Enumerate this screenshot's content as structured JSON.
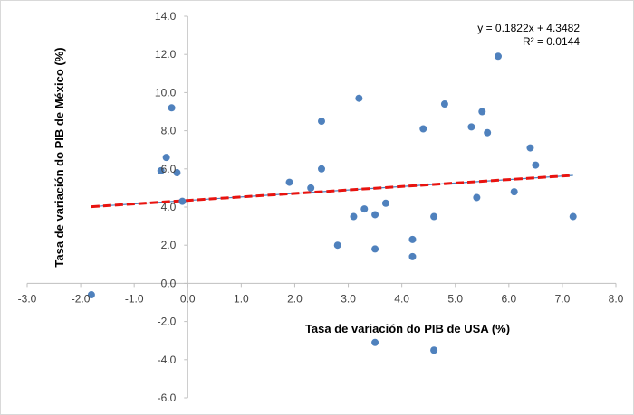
{
  "chart_data": {
    "type": "scatter",
    "xlabel": "Tasa de variación do PIB de USA (%)",
    "ylabel": "Tasa de variación do PIB de México (%)",
    "xlim": [
      -3.0,
      8.0
    ],
    "ylim": [
      -6.0,
      14.0
    ],
    "x_ticks": [
      -3.0,
      -2.0,
      -1.0,
      0.0,
      1.0,
      2.0,
      3.0,
      4.0,
      5.0,
      6.0,
      7.0,
      8.0
    ],
    "y_ticks": [
      -6.0,
      -4.0,
      -2.0,
      0.0,
      2.0,
      4.0,
      6.0,
      8.0,
      10.0,
      12.0,
      14.0
    ],
    "x_tick_labels": [
      "-3.0",
      "-2.0",
      "-1.0",
      "0.0",
      "1.0",
      "2.0",
      "3.0",
      "4.0",
      "5.0",
      "6.0",
      "7.0",
      "8.0"
    ],
    "y_tick_labels": [
      "-6.0",
      "-4.0",
      "-2.0",
      "0.0",
      "2.0",
      "4.0",
      "6.0",
      "8.0",
      "10.0",
      "12.0",
      "14.0"
    ],
    "points": [
      {
        "x": -1.8,
        "y": -0.6
      },
      {
        "x": -0.5,
        "y": 5.9
      },
      {
        "x": -0.4,
        "y": 6.6
      },
      {
        "x": -0.3,
        "y": 9.2
      },
      {
        "x": -0.2,
        "y": 5.8
      },
      {
        "x": -0.1,
        "y": 4.3
      },
      {
        "x": 1.9,
        "y": 5.3
      },
      {
        "x": 2.3,
        "y": 5.0
      },
      {
        "x": 2.5,
        "y": 6.0
      },
      {
        "x": 2.5,
        "y": 8.5
      },
      {
        "x": 2.8,
        "y": 2.0
      },
      {
        "x": 3.1,
        "y": 3.5
      },
      {
        "x": 3.2,
        "y": 9.7
      },
      {
        "x": 3.3,
        "y": 3.9
      },
      {
        "x": 3.5,
        "y": 3.6
      },
      {
        "x": 3.5,
        "y": 1.8
      },
      {
        "x": 3.5,
        "y": -3.1
      },
      {
        "x": 3.7,
        "y": 4.2
      },
      {
        "x": 4.2,
        "y": 2.3
      },
      {
        "x": 4.2,
        "y": 1.4
      },
      {
        "x": 4.4,
        "y": 8.1
      },
      {
        "x": 4.6,
        "y": 3.5
      },
      {
        "x": 4.6,
        "y": -3.5
      },
      {
        "x": 4.8,
        "y": 9.4
      },
      {
        "x": 5.3,
        "y": 8.2
      },
      {
        "x": 5.4,
        "y": 4.5
      },
      {
        "x": 5.5,
        "y": 9.0
      },
      {
        "x": 5.6,
        "y": 7.9
      },
      {
        "x": 5.8,
        "y": 11.9
      },
      {
        "x": 6.1,
        "y": 4.8
      },
      {
        "x": 6.4,
        "y": 7.1
      },
      {
        "x": 6.5,
        "y": 6.2
      },
      {
        "x": 7.2,
        "y": 3.5
      }
    ],
    "trendline": {
      "slope": 0.1822,
      "intercept": 4.3482,
      "x_range": [
        -1.8,
        7.2
      ],
      "equation": "y = 0.1822x + 4.3482",
      "r_squared": "R² = 0.0144"
    },
    "colors": {
      "points": "#4f81bd",
      "trendline_dash": "#e8130f",
      "trendline_inner": "#4f81bd",
      "axis": "#bfbfbf"
    },
    "grid": false,
    "legend": "none"
  }
}
